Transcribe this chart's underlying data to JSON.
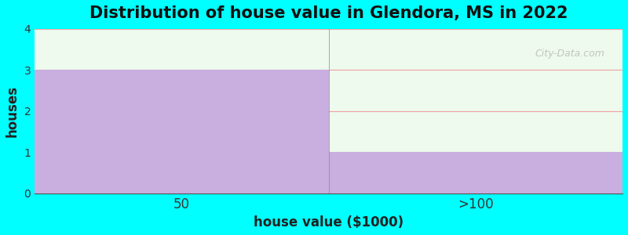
{
  "title": "Distribution of house value in Glendora, MS in 2022",
  "categories": [
    "50",
    ">100"
  ],
  "values": [
    3,
    1
  ],
  "bar_color": "#c9aee0",
  "xlabel": "house value ($1000)",
  "ylabel": "houses",
  "ylim": [
    0,
    4
  ],
  "yticks": [
    0,
    1,
    2,
    3,
    4
  ],
  "background_color": "#00ffff",
  "plot_bg_color": "#edfaed",
  "grid_color": "#f0a0a0",
  "title_fontsize": 15,
  "label_fontsize": 12,
  "watermark": "City-Data.com"
}
